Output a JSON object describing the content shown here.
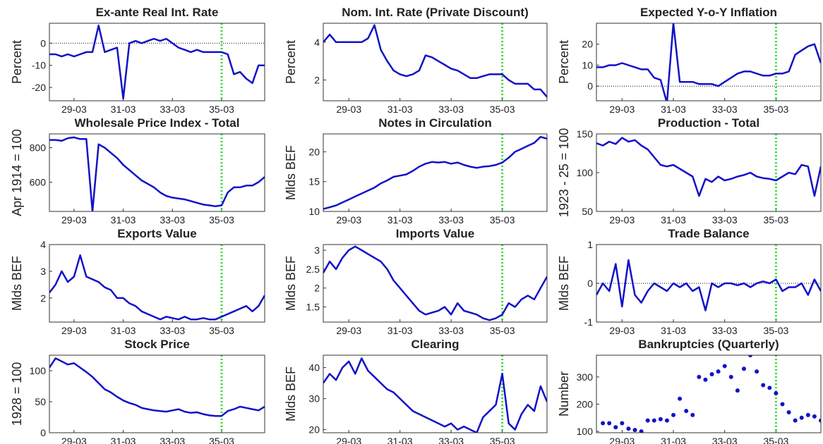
{
  "chart_data": [
    {
      "type": "line",
      "title": "Ex-ante Real Int. Rate",
      "ylabel": "Percent",
      "color": "#1212c8",
      "categories": [
        null,
        null,
        null,
        null,
        "29-03",
        null,
        null,
        null,
        null,
        null,
        null,
        null,
        "31-03",
        null,
        null,
        null,
        null,
        null,
        null,
        null,
        "33-03",
        null,
        null,
        null,
        null,
        null,
        null,
        null,
        "35-03",
        null,
        null,
        null,
        null,
        null,
        null,
        null
      ],
      "values": [
        -5,
        -5,
        -6,
        -5,
        -6,
        -5,
        -4,
        -4,
        8,
        -4,
        -3,
        -2,
        -25,
        0,
        1,
        0,
        1,
        2,
        1,
        2,
        0,
        -2,
        -3,
        -4,
        -3,
        -4,
        -4,
        -4,
        -4,
        -5,
        -14,
        -13,
        -16,
        -18,
        -10,
        -10
      ],
      "ylim": [
        -26,
        9
      ],
      "yticks": [
        -20,
        -10,
        0
      ],
      "hline": 0,
      "vline": 28
    },
    {
      "type": "line",
      "title": "Nom. Int. Rate (Private Discount)",
      "ylabel": "Percent",
      "color": "#1212c8",
      "categories": [
        null,
        null,
        null,
        null,
        "29-03",
        null,
        null,
        null,
        null,
        null,
        null,
        null,
        "31-03",
        null,
        null,
        null,
        null,
        null,
        null,
        null,
        "33-03",
        null,
        null,
        null,
        null,
        null,
        null,
        null,
        "35-03",
        null,
        null,
        null,
        null,
        null,
        null,
        null
      ],
      "values": [
        4,
        4.4,
        4,
        4,
        4,
        4,
        4,
        4.2,
        4.9,
        3.6,
        3,
        2.5,
        2.3,
        2.2,
        2.3,
        2.5,
        3.3,
        3.2,
        3,
        2.8,
        2.6,
        2.5,
        2.3,
        2.1,
        2.1,
        2.2,
        2.3,
        2.3,
        2.3,
        2,
        1.8,
        1.8,
        1.8,
        1.5,
        1.5,
        1.1
      ],
      "ylim": [
        0.9,
        5
      ],
      "yticks": [
        2,
        4
      ],
      "vline": 28
    },
    {
      "type": "line",
      "title": "Expected Y-o-Y Inflation",
      "ylabel": "Percent",
      "color": "#1212c8",
      "categories": [
        null,
        null,
        null,
        null,
        "29-03",
        null,
        null,
        null,
        null,
        null,
        null,
        null,
        "31-03",
        null,
        null,
        null,
        null,
        null,
        null,
        null,
        "33-03",
        null,
        null,
        null,
        null,
        null,
        null,
        null,
        "35-03",
        null,
        null,
        null,
        null,
        null,
        null,
        null
      ],
      "values": [
        9,
        9,
        10,
        10,
        11,
        10,
        9,
        8,
        8,
        4,
        3,
        -8,
        30,
        2,
        2,
        2,
        1,
        1,
        1,
        0,
        2,
        4,
        6,
        7,
        7,
        6,
        5,
        5,
        6,
        6,
        7,
        15,
        17,
        19,
        20,
        11
      ],
      "ylim": [
        -7,
        30
      ],
      "yticks": [
        0,
        10,
        20
      ],
      "hline": 0,
      "vline": 28
    },
    {
      "type": "line",
      "title": "Wholesale Price Index - Total",
      "ylabel": "Apr 1914 = 100",
      "color": "#1212c8",
      "categories": [
        null,
        null,
        null,
        null,
        "29-03",
        null,
        null,
        null,
        null,
        null,
        null,
        null,
        "31-03",
        null,
        null,
        null,
        null,
        null,
        null,
        null,
        "33-03",
        null,
        null,
        null,
        null,
        null,
        null,
        null,
        "35-03",
        null,
        null,
        null,
        null,
        null,
        null,
        null
      ],
      "values": [
        845,
        845,
        840,
        855,
        860,
        850,
        850,
        430,
        820,
        800,
        770,
        740,
        700,
        670,
        640,
        610,
        590,
        570,
        540,
        520,
        510,
        505,
        500,
        490,
        480,
        470,
        465,
        460,
        465,
        540,
        570,
        570,
        580,
        580,
        600,
        630
      ],
      "ylim": [
        430,
        880
      ],
      "yticks": [
        600,
        800
      ],
      "vline": 28
    },
    {
      "type": "line",
      "title": "Notes in Circulation",
      "ylabel": "Mlds BEF",
      "color": "#1212c8",
      "categories": [
        null,
        null,
        null,
        null,
        "29-03",
        null,
        null,
        null,
        null,
        null,
        null,
        null,
        "31-03",
        null,
        null,
        null,
        null,
        null,
        null,
        null,
        "33-03",
        null,
        null,
        null,
        null,
        null,
        null,
        null,
        "35-03",
        null,
        null,
        null,
        null,
        null,
        null,
        null
      ],
      "values": [
        10.4,
        10.7,
        11,
        11.5,
        12,
        12.5,
        13,
        13.5,
        14,
        14.7,
        15.2,
        15.8,
        16,
        16.2,
        16.8,
        17.5,
        18,
        18.3,
        18.2,
        18.3,
        18,
        18.2,
        17.8,
        17.5,
        17.3,
        17.5,
        17.6,
        17.8,
        18.2,
        19,
        20,
        20.5,
        21,
        21.5,
        22.5,
        22.2
      ],
      "ylim": [
        10,
        23
      ],
      "yticks": [
        10,
        15,
        20
      ],
      "vline": 28
    },
    {
      "type": "line",
      "title": "Production - Total",
      "ylabel": "1923 - 25 = 100",
      "color": "#1212c8",
      "categories": [
        null,
        null,
        null,
        null,
        "29-03",
        null,
        null,
        null,
        null,
        null,
        null,
        null,
        "31-03",
        null,
        null,
        null,
        null,
        null,
        null,
        null,
        "33-03",
        null,
        null,
        null,
        null,
        null,
        null,
        null,
        "35-03",
        null,
        null,
        null,
        null,
        null,
        null,
        null
      ],
      "values": [
        138,
        135,
        140,
        137,
        145,
        140,
        142,
        135,
        130,
        120,
        110,
        108,
        110,
        105,
        100,
        95,
        70,
        92,
        88,
        95,
        90,
        92,
        95,
        97,
        100,
        95,
        93,
        92,
        90,
        95,
        100,
        98,
        110,
        108,
        70,
        108
      ],
      "ylim": [
        50,
        150
      ],
      "yticks": [
        50,
        100,
        150
      ],
      "vline": 28
    },
    {
      "type": "line",
      "title": "Exports Value",
      "ylabel": "Mlds BEF",
      "color": "#1212c8",
      "categories": [
        null,
        null,
        null,
        null,
        "29-03",
        null,
        null,
        null,
        null,
        null,
        null,
        null,
        "31-03",
        null,
        null,
        null,
        null,
        null,
        null,
        null,
        "33-03",
        null,
        null,
        null,
        null,
        null,
        null,
        null,
        "35-03",
        null,
        null,
        null,
        null,
        null,
        null,
        null
      ],
      "values": [
        2.2,
        2.5,
        3,
        2.6,
        2.8,
        3.6,
        2.8,
        2.7,
        2.6,
        2.4,
        2.3,
        2,
        2,
        1.8,
        1.7,
        1.5,
        1.4,
        1.3,
        1.2,
        1.3,
        1.25,
        1.2,
        1.3,
        1.2,
        1.2,
        1.25,
        1.2,
        1.2,
        1.3,
        1.4,
        1.5,
        1.6,
        1.7,
        1.5,
        1.7,
        2.1
      ],
      "ylim": [
        1.1,
        4
      ],
      "yticks": [
        2,
        3,
        4
      ],
      "vline": 28
    },
    {
      "type": "line",
      "title": "Imports Value",
      "ylabel": "Mlds BEF",
      "color": "#1212c8",
      "categories": [
        null,
        null,
        null,
        null,
        "29-03",
        null,
        null,
        null,
        null,
        null,
        null,
        null,
        "31-03",
        null,
        null,
        null,
        null,
        null,
        null,
        null,
        "33-03",
        null,
        null,
        null,
        null,
        null,
        null,
        null,
        "35-03",
        null,
        null,
        null,
        null,
        null,
        null,
        null
      ],
      "values": [
        2.4,
        2.7,
        2.5,
        2.8,
        3,
        3.1,
        3,
        2.9,
        2.8,
        2.7,
        2.5,
        2.2,
        2,
        1.8,
        1.6,
        1.4,
        1.3,
        1.35,
        1.4,
        1.5,
        1.3,
        1.6,
        1.4,
        1.35,
        1.3,
        1.2,
        1.15,
        1.2,
        1.3,
        1.6,
        1.5,
        1.7,
        1.8,
        1.7,
        2,
        2.3
      ],
      "ylim": [
        1.1,
        3.15
      ],
      "yticks": [
        1.5,
        2,
        2.5,
        3
      ],
      "vline": 28
    },
    {
      "type": "line",
      "title": "Trade Balance",
      "ylabel": "Mlds BEF",
      "color": "#1212c8",
      "categories": [
        null,
        null,
        null,
        null,
        "29-03",
        null,
        null,
        null,
        null,
        null,
        null,
        null,
        "31-03",
        null,
        null,
        null,
        null,
        null,
        null,
        null,
        "33-03",
        null,
        null,
        null,
        null,
        null,
        null,
        null,
        "35-03",
        null,
        null,
        null,
        null,
        null,
        null,
        null
      ],
      "values": [
        -0.3,
        0,
        -0.2,
        0.5,
        -0.6,
        0.6,
        -0.3,
        -0.5,
        -0.2,
        0,
        -0.1,
        -0.2,
        0,
        -0.1,
        0,
        -0.2,
        -0.1,
        -0.7,
        0,
        -0.1,
        0,
        0,
        -0.05,
        0,
        -0.1,
        0,
        0.05,
        0,
        0.1,
        -0.2,
        -0.1,
        -0.1,
        0,
        -0.3,
        0.1,
        -0.2
      ],
      "ylim": [
        -1,
        1
      ],
      "yticks": [
        -1,
        0,
        1
      ],
      "hline": 0,
      "vline": 28
    },
    {
      "type": "line",
      "title": "Stock Price",
      "ylabel": "1928 = 100",
      "color": "#1212c8",
      "categories": [
        null,
        null,
        null,
        null,
        "29-03",
        null,
        null,
        null,
        null,
        null,
        null,
        null,
        "31-03",
        null,
        null,
        null,
        null,
        null,
        null,
        null,
        "33-03",
        null,
        null,
        null,
        null,
        null,
        null,
        null,
        "35-03",
        null,
        null,
        null,
        null,
        null,
        null,
        null
      ],
      "values": [
        105,
        120,
        115,
        110,
        112,
        105,
        98,
        90,
        80,
        70,
        65,
        58,
        52,
        48,
        45,
        40,
        38,
        36,
        35,
        34,
        36,
        38,
        34,
        32,
        33,
        30,
        28,
        27,
        27,
        35,
        38,
        42,
        40,
        38,
        36,
        42
      ],
      "ylim": [
        0,
        125
      ],
      "yticks": [
        0,
        50,
        100
      ],
      "vline": 28
    },
    {
      "type": "line",
      "title": "Clearing",
      "ylabel": "Mlds BEF",
      "color": "#1212c8",
      "categories": [
        null,
        null,
        null,
        null,
        "29-03",
        null,
        null,
        null,
        null,
        null,
        null,
        null,
        "31-03",
        null,
        null,
        null,
        null,
        null,
        null,
        null,
        "33-03",
        null,
        null,
        null,
        null,
        null,
        null,
        null,
        "35-03",
        null,
        null,
        null,
        null,
        null,
        null,
        null
      ],
      "values": [
        35,
        38,
        36,
        40,
        42,
        38,
        43,
        39,
        37,
        35,
        33,
        32,
        30,
        28,
        26,
        25,
        24,
        23,
        22,
        21,
        22,
        20,
        21,
        20,
        19,
        24,
        26,
        28,
        38,
        22,
        20,
        25,
        28,
        26,
        34,
        29
      ],
      "ylim": [
        19,
        44
      ],
      "yticks": [
        20,
        30,
        40
      ],
      "vline": 28
    },
    {
      "type": "scatter",
      "title": "Bankruptcies (Quarterly)",
      "ylabel": "Number",
      "color": "#1212c8",
      "categories": [
        null,
        null,
        null,
        null,
        "29-03",
        null,
        null,
        null,
        null,
        null,
        null,
        null,
        "31-03",
        null,
        null,
        null,
        null,
        null,
        null,
        null,
        "33-03",
        null,
        null,
        null,
        null,
        null,
        null,
        null,
        "35-03",
        null,
        null,
        null,
        null,
        null,
        null,
        null
      ],
      "values": [
        null,
        130,
        130,
        115,
        130,
        110,
        105,
        100,
        140,
        140,
        145,
        140,
        160,
        220,
        175,
        160,
        300,
        290,
        310,
        320,
        340,
        300,
        250,
        330,
        380,
        320,
        270,
        260,
        240,
        200,
        170,
        140,
        150,
        160,
        155,
        140
      ],
      "ylim": [
        95,
        380
      ],
      "yticks": [
        100,
        200,
        300
      ],
      "vline": 28
    }
  ]
}
